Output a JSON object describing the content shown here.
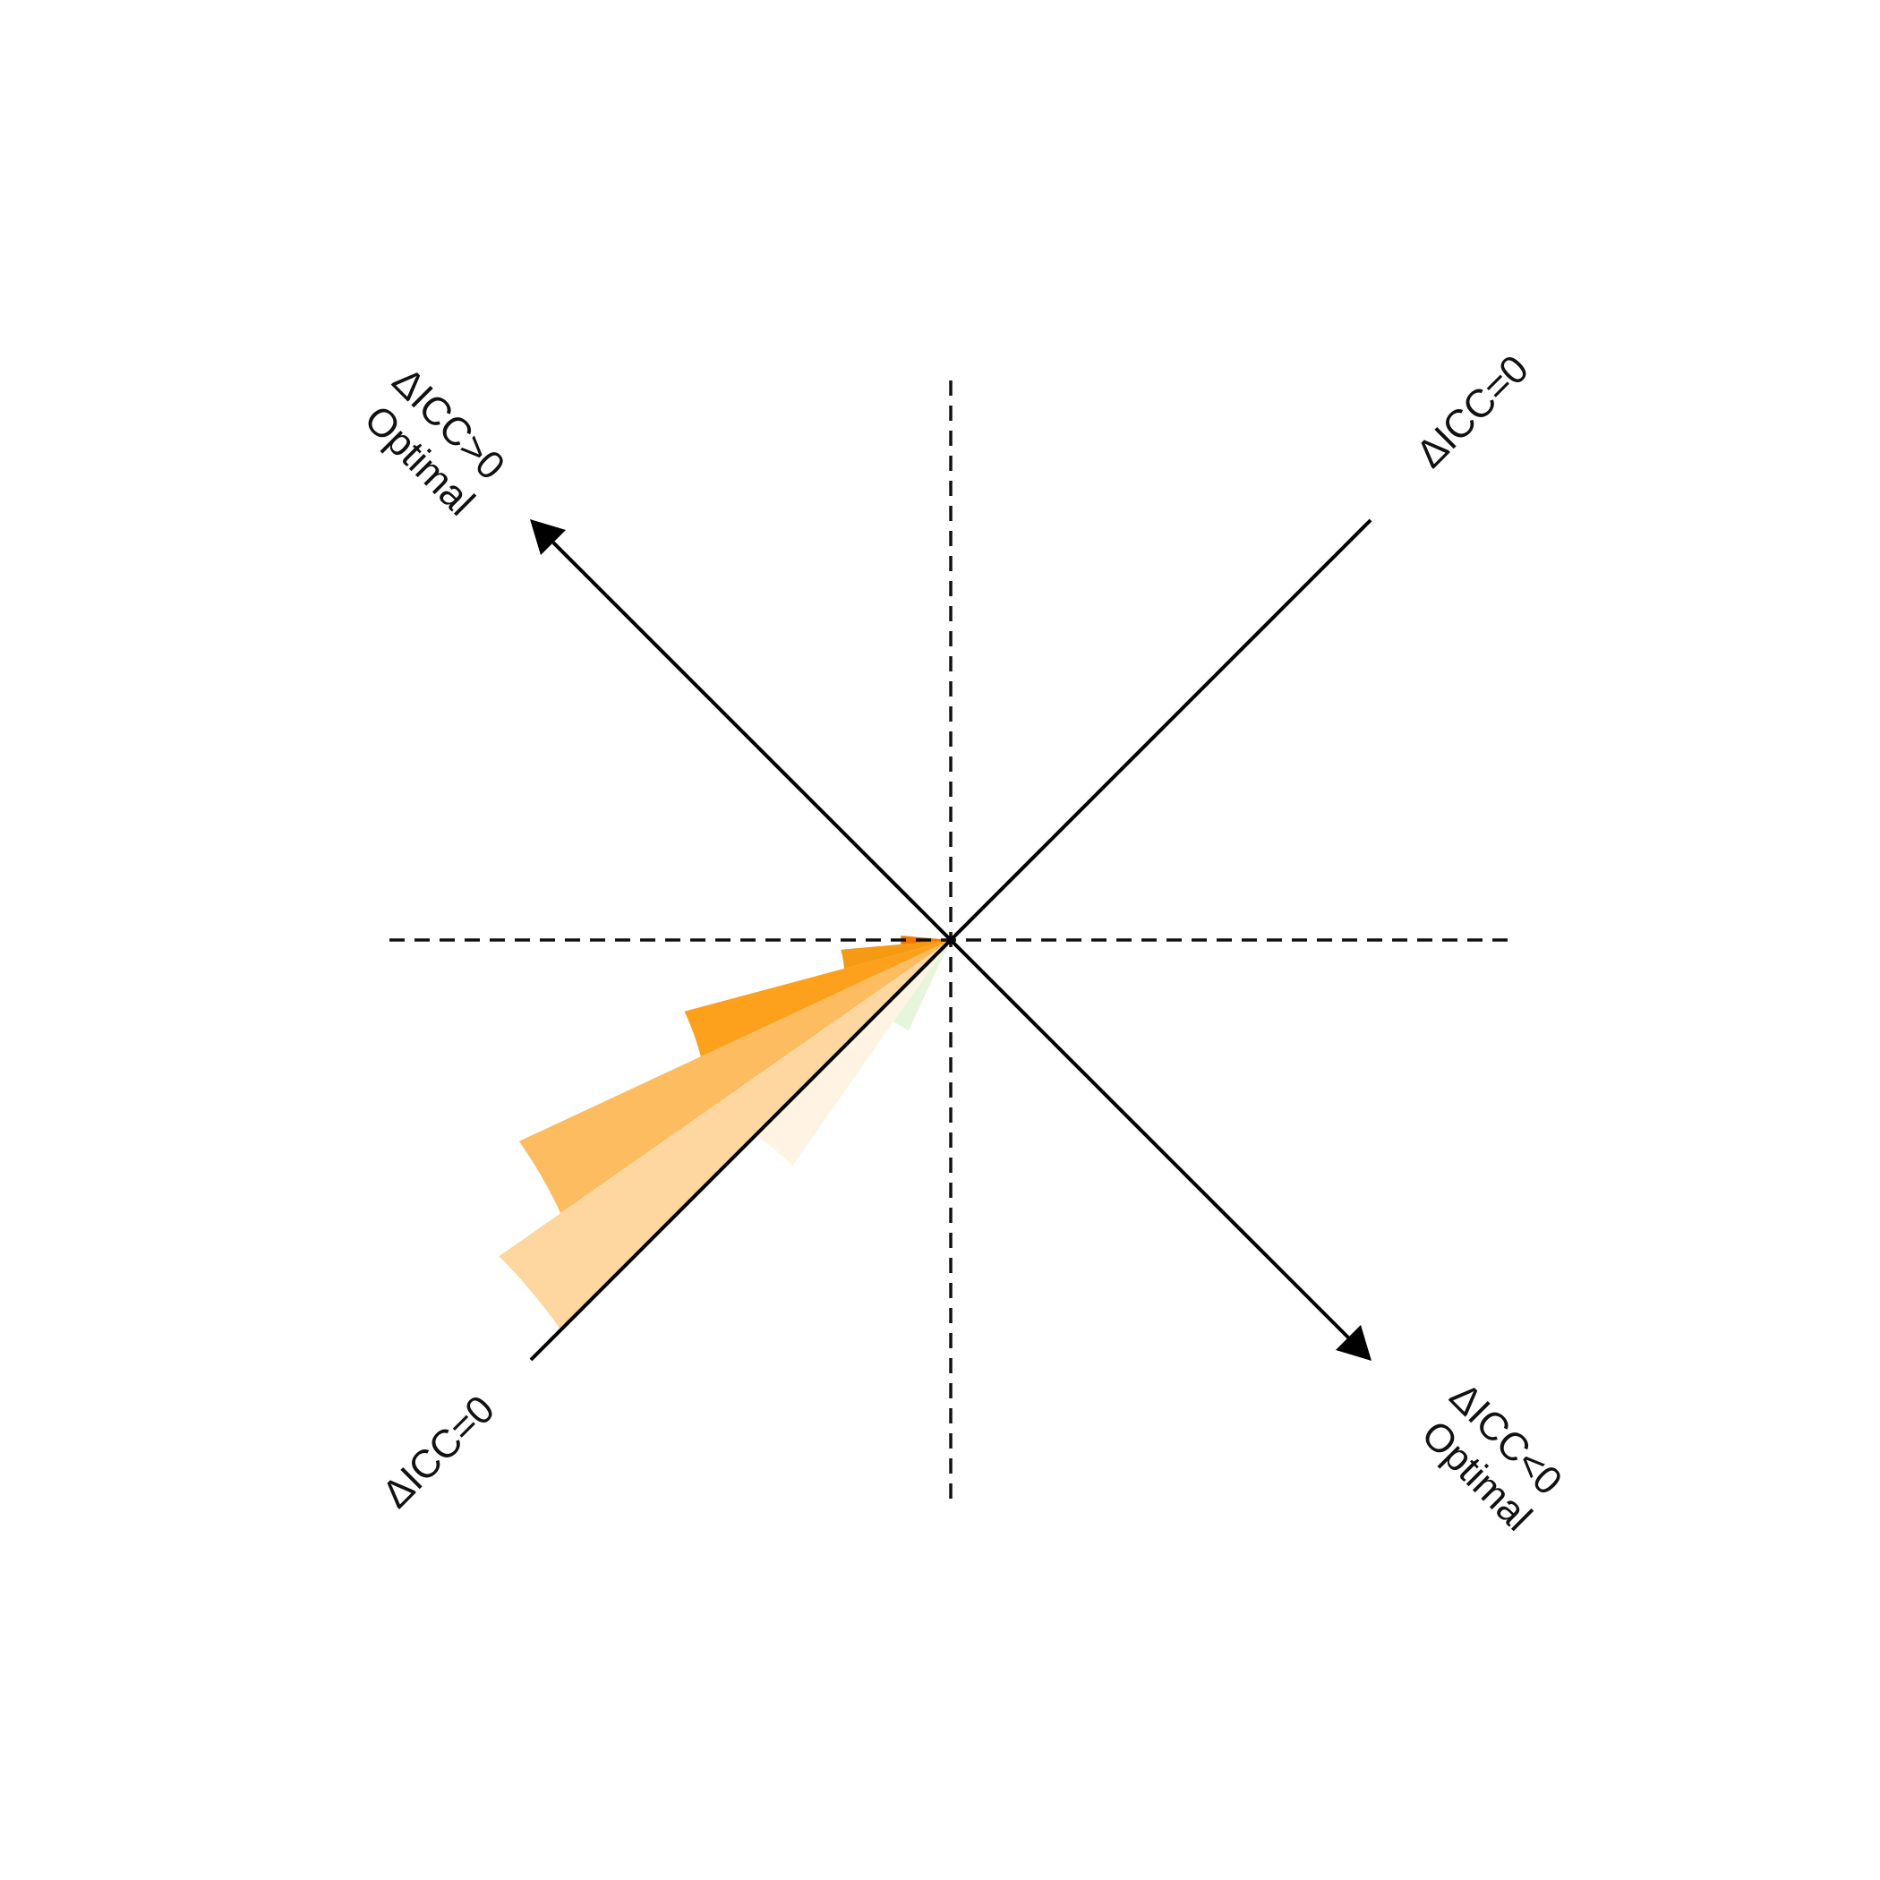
{
  "chart_data": {
    "type": "polar-bar",
    "title": "",
    "angle_unit": "degrees",
    "angle_convention": "counterclockwise from positive x-axis",
    "bin_width_deg": 10,
    "bars": [
      {
        "angle_deg": 180,
        "radius": 0.1,
        "color": "#F07800"
      },
      {
        "angle_deg": 190,
        "radius": 0.22,
        "color": "#F59A12"
      },
      {
        "angle_deg": 200,
        "radius": 0.55,
        "color": "#FDA11C"
      },
      {
        "angle_deg": 210,
        "radius": 0.95,
        "color": "#FDBC60"
      },
      {
        "angle_deg": 220,
        "radius": 1.1,
        "color": "#FED7A0"
      },
      {
        "angle_deg": 230,
        "radius": 0.55,
        "color": "#FFF4E4"
      },
      {
        "angle_deg": 240,
        "radius": 0.2,
        "color": "#E6F6DC"
      }
    ],
    "r_max": 1.25,
    "grid": false,
    "reference_lines": [
      {
        "orientation": "horizontal",
        "style": "dashed"
      },
      {
        "orientation": "vertical",
        "style": "dashed"
      },
      {
        "orientation": "diagonal-45",
        "style": "solid",
        "arrowheads": false
      },
      {
        "orientation": "diagonal-135",
        "style": "solid",
        "arrowheads": true
      }
    ],
    "labels": {
      "top_left": [
        "ΔICC>0",
        "Optimal"
      ],
      "top_right": [
        "ΔICC=0"
      ],
      "bottom_left": [
        "ΔICC=0"
      ],
      "bottom_right": [
        "ΔICC<0",
        "Optimal"
      ]
    }
  }
}
